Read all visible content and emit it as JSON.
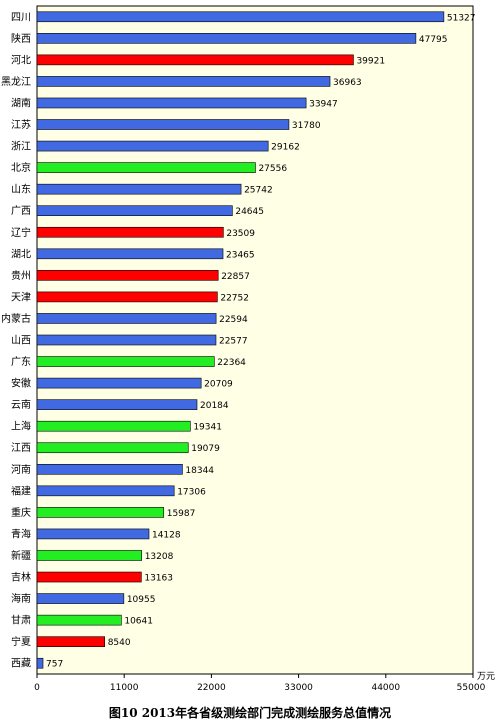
{
  "chart_data": {
    "type": "bar",
    "orientation": "horizontal",
    "title": "图10   2013年各省级测绘部门完成测绘服务总值情况",
    "unit": "万元",
    "xlim": [
      0,
      55000
    ],
    "xticks": [
      "0",
      "11000",
      "22000",
      "33000",
      "44000",
      "55000"
    ],
    "categories": [
      "四川",
      "陕西",
      "河北",
      "黑龙江",
      "湖南",
      "江苏",
      "浙江",
      "北京",
      "山东",
      "广西",
      "辽宁",
      "湖北",
      "贵州",
      "天津",
      "内蒙古",
      "山西",
      "广东",
      "安徽",
      "云南",
      "上海",
      "江西",
      "河南",
      "福建",
      "重庆",
      "青海",
      "新疆",
      "吉林",
      "海南",
      "甘肃",
      "宁夏",
      "西藏"
    ],
    "values": [
      51327,
      47795,
      39921,
      36963,
      33947,
      31780,
      29162,
      27556,
      25742,
      24645,
      23509,
      23465,
      22857,
      22752,
      22594,
      22577,
      22364,
      20709,
      20184,
      19341,
      19079,
      18344,
      17306,
      15987,
      14128,
      13208,
      13163,
      10955,
      10641,
      8540,
      757
    ],
    "colors": [
      "blue",
      "blue",
      "red",
      "blue",
      "blue",
      "blue",
      "blue",
      "green",
      "blue",
      "blue",
      "red",
      "blue",
      "red",
      "red",
      "blue",
      "blue",
      "green",
      "blue",
      "blue",
      "green",
      "green",
      "blue",
      "blue",
      "green",
      "blue",
      "green",
      "red",
      "blue",
      "green",
      "red",
      "blue"
    ],
    "palette": {
      "blue": "#4169E1",
      "red": "#FF0000",
      "green": "#22EE22"
    },
    "grid": false
  }
}
